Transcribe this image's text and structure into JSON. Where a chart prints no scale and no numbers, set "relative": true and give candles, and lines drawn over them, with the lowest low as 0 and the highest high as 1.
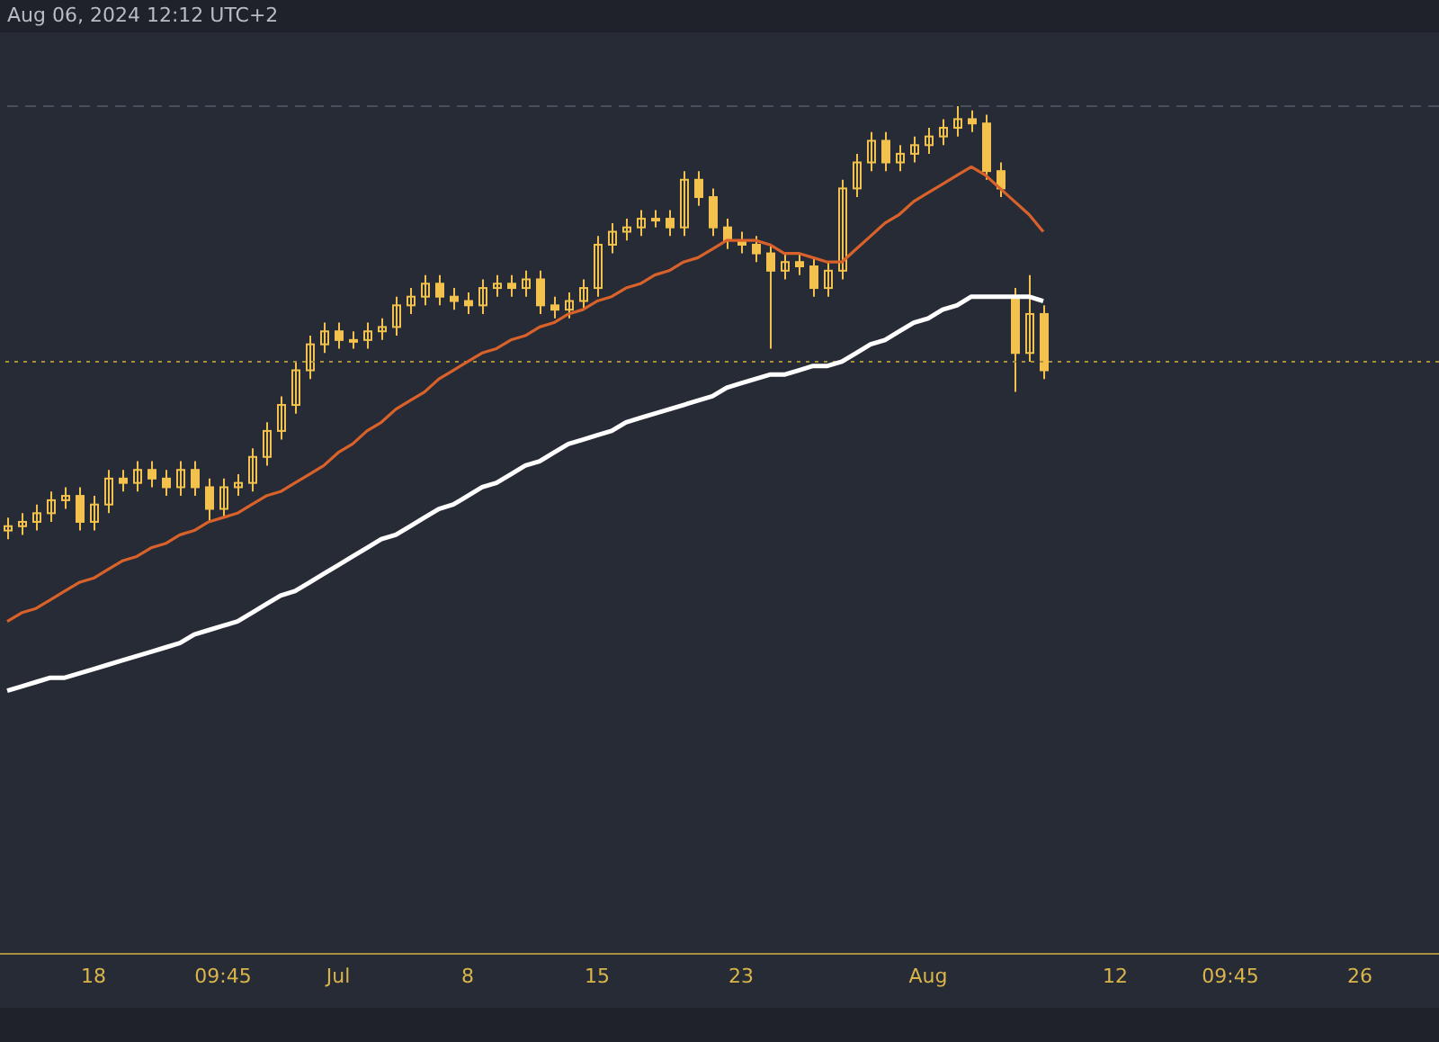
{
  "chart_data": {
    "type": "candlestick",
    "relative": true,
    "color": "#f2c14e",
    "marker": "none",
    "annotations": [
      "Aug 06, 2024 12:12 UTC+2"
    ],
    "categories": [
      null,
      null,
      null,
      null,
      null,
      null,
      "18",
      null,
      null,
      null,
      null,
      null,
      null,
      null,
      null,
      "09:45",
      null,
      null,
      null,
      null,
      null,
      null,
      null,
      "Jul",
      null,
      null,
      null,
      null,
      null,
      null,
      null,
      null,
      "8",
      null,
      null,
      null,
      null,
      null,
      null,
      null,
      null,
      "15",
      null,
      null,
      null,
      null,
      null,
      null,
      null,
      null,
      null,
      "23",
      null,
      null,
      null,
      null,
      null,
      null,
      null,
      null,
      null,
      null,
      null,
      null,
      "Aug",
      null,
      null,
      null,
      null,
      null,
      null,
      null,
      null,
      null,
      null,
      null,
      null,
      "12",
      null,
      null,
      null,
      null,
      null,
      null,
      null,
      "09:45",
      null,
      null,
      null,
      null,
      null,
      null,
      null,
      null,
      "26",
      null,
      null,
      null,
      null,
      null
    ],
    "ohlc": [
      [
        0.02,
        0.05,
        0.0,
        0.03
      ],
      [
        0.03,
        0.06,
        0.01,
        0.04
      ],
      [
        0.04,
        0.08,
        0.02,
        0.06
      ],
      [
        0.06,
        0.11,
        0.04,
        0.09
      ],
      [
        0.09,
        0.12,
        0.07,
        0.1
      ],
      [
        0.1,
        0.12,
        0.02,
        0.04
      ],
      [
        0.04,
        0.1,
        0.02,
        0.08
      ],
      [
        0.08,
        0.16,
        0.06,
        0.14
      ],
      [
        0.14,
        0.16,
        0.11,
        0.13
      ],
      [
        0.13,
        0.18,
        0.11,
        0.16
      ],
      [
        0.16,
        0.18,
        0.12,
        0.14
      ],
      [
        0.14,
        0.16,
        0.1,
        0.12
      ],
      [
        0.12,
        0.18,
        0.1,
        0.16
      ],
      [
        0.16,
        0.18,
        0.1,
        0.12
      ],
      [
        0.12,
        0.14,
        0.04,
        0.07
      ],
      [
        0.07,
        0.14,
        0.05,
        0.12
      ],
      [
        0.12,
        0.15,
        0.1,
        0.13
      ],
      [
        0.13,
        0.21,
        0.11,
        0.19
      ],
      [
        0.19,
        0.27,
        0.17,
        0.25
      ],
      [
        0.25,
        0.33,
        0.23,
        0.31
      ],
      [
        0.31,
        0.41,
        0.29,
        0.39
      ],
      [
        0.39,
        0.47,
        0.37,
        0.45
      ],
      [
        0.45,
        0.5,
        0.43,
        0.48
      ],
      [
        0.48,
        0.5,
        0.44,
        0.46
      ],
      [
        0.46,
        0.48,
        0.44,
        0.46
      ],
      [
        0.46,
        0.5,
        0.44,
        0.48
      ],
      [
        0.48,
        0.51,
        0.46,
        0.49
      ],
      [
        0.49,
        0.56,
        0.47,
        0.54
      ],
      [
        0.54,
        0.58,
        0.52,
        0.56
      ],
      [
        0.56,
        0.61,
        0.54,
        0.59
      ],
      [
        0.59,
        0.61,
        0.54,
        0.56
      ],
      [
        0.56,
        0.58,
        0.53,
        0.55
      ],
      [
        0.55,
        0.57,
        0.52,
        0.54
      ],
      [
        0.54,
        0.6,
        0.52,
        0.58
      ],
      [
        0.58,
        0.61,
        0.56,
        0.59
      ],
      [
        0.59,
        0.61,
        0.56,
        0.58
      ],
      [
        0.58,
        0.62,
        0.56,
        0.6
      ],
      [
        0.6,
        0.62,
        0.52,
        0.54
      ],
      [
        0.54,
        0.56,
        0.51,
        0.53
      ],
      [
        0.53,
        0.57,
        0.51,
        0.55
      ],
      [
        0.55,
        0.6,
        0.53,
        0.58
      ],
      [
        0.58,
        0.7,
        0.56,
        0.68
      ],
      [
        0.68,
        0.73,
        0.66,
        0.71
      ],
      [
        0.71,
        0.74,
        0.69,
        0.72
      ],
      [
        0.72,
        0.76,
        0.7,
        0.74
      ],
      [
        0.74,
        0.76,
        0.72,
        0.74
      ],
      [
        0.74,
        0.76,
        0.7,
        0.72
      ],
      [
        0.72,
        0.85,
        0.7,
        0.83
      ],
      [
        0.83,
        0.85,
        0.77,
        0.79
      ],
      [
        0.79,
        0.81,
        0.7,
        0.72
      ],
      [
        0.72,
        0.74,
        0.67,
        0.69
      ],
      [
        0.69,
        0.71,
        0.66,
        0.68
      ],
      [
        0.68,
        0.7,
        0.64,
        0.66
      ],
      [
        0.66,
        0.68,
        0.44,
        0.62
      ],
      [
        0.62,
        0.66,
        0.6,
        0.64
      ],
      [
        0.64,
        0.66,
        0.61,
        0.63
      ],
      [
        0.63,
        0.65,
        0.56,
        0.58
      ],
      [
        0.58,
        0.64,
        0.56,
        0.62
      ],
      [
        0.62,
        0.83,
        0.6,
        0.81
      ],
      [
        0.81,
        0.89,
        0.79,
        0.87
      ],
      [
        0.87,
        0.94,
        0.85,
        0.92
      ],
      [
        0.92,
        0.94,
        0.85,
        0.87
      ],
      [
        0.87,
        0.91,
        0.85,
        0.89
      ],
      [
        0.89,
        0.93,
        0.87,
        0.91
      ],
      [
        0.91,
        0.95,
        0.89,
        0.93
      ],
      [
        0.93,
        0.97,
        0.91,
        0.95
      ],
      [
        0.95,
        1.0,
        0.93,
        0.97
      ],
      [
        0.97,
        0.99,
        0.94,
        0.96
      ],
      [
        0.96,
        0.98,
        0.83,
        0.85
      ],
      [
        0.85,
        0.87,
        0.79,
        0.81
      ],
      [
        0.56,
        0.58,
        0.34,
        0.43
      ],
      [
        0.43,
        0.61,
        0.41,
        0.52
      ],
      [
        0.52,
        0.54,
        0.37,
        0.39
      ],
      null,
      null,
      null,
      null,
      null,
      null,
      null,
      null,
      null,
      null,
      null,
      null,
      null,
      null,
      null,
      null,
      null,
      null,
      null,
      null,
      null,
      null,
      null,
      null,
      null,
      null,
      null
    ],
    "series": [
      {
        "type": "line",
        "color": "#d9622b",
        "values": [
          -0.19,
          -0.17,
          -0.16,
          -0.14,
          -0.12,
          -0.1,
          -0.09,
          -0.07,
          -0.05,
          -0.04,
          -0.02,
          -0.01,
          0.01,
          0.02,
          0.04,
          0.05,
          0.06,
          0.08,
          0.1,
          0.11,
          0.13,
          0.15,
          0.17,
          0.2,
          0.22,
          0.25,
          0.27,
          0.3,
          0.32,
          0.34,
          0.37,
          0.39,
          0.41,
          0.43,
          0.44,
          0.46,
          0.47,
          0.49,
          0.5,
          0.52,
          0.53,
          0.55,
          0.56,
          0.58,
          0.59,
          0.61,
          0.62,
          0.64,
          0.65,
          0.67,
          0.69,
          0.69,
          0.69,
          0.68,
          0.66,
          0.66,
          0.65,
          0.64,
          0.64,
          0.67,
          0.7,
          0.73,
          0.75,
          0.78,
          0.8,
          0.82,
          0.84,
          0.86,
          0.84,
          0.81,
          0.78,
          0.75,
          0.71,
          null,
          null,
          null,
          null,
          null,
          null,
          null,
          null,
          null,
          null,
          null,
          null,
          null,
          null,
          null,
          null,
          null,
          null,
          null,
          null,
          null,
          null,
          null,
          null,
          null,
          null,
          null
        ]
      },
      {
        "type": "line",
        "color": "#ffffff",
        "values": [
          -0.35,
          -0.34,
          -0.33,
          -0.32,
          -0.32,
          -0.31,
          -0.3,
          -0.29,
          -0.28,
          -0.27,
          -0.26,
          -0.25,
          -0.24,
          -0.22,
          -0.21,
          -0.2,
          -0.19,
          -0.17,
          -0.15,
          -0.13,
          -0.12,
          -0.1,
          -0.08,
          -0.06,
          -0.04,
          -0.02,
          0.0,
          0.01,
          0.03,
          0.05,
          0.07,
          0.08,
          0.1,
          0.12,
          0.13,
          0.15,
          0.17,
          0.18,
          0.2,
          0.22,
          0.23,
          0.24,
          0.25,
          0.27,
          0.28,
          0.29,
          0.3,
          0.31,
          0.32,
          0.33,
          0.35,
          0.36,
          0.37,
          0.38,
          0.38,
          0.39,
          0.4,
          0.4,
          0.41,
          0.43,
          0.45,
          0.46,
          0.48,
          0.5,
          0.51,
          0.53,
          0.54,
          0.56,
          0.56,
          0.56,
          0.56,
          0.56,
          0.55,
          null,
          null,
          null,
          null,
          null,
          null,
          null,
          null,
          null,
          null,
          null,
          null,
          null,
          null,
          null,
          null,
          null,
          null,
          null,
          null,
          null,
          null,
          null,
          null,
          null,
          null,
          null
        ]
      }
    ],
    "ref_lines": [
      {
        "axis": "y",
        "value": 1.0,
        "color": "#4a4f5c",
        "line_style": "dashed"
      },
      {
        "axis": "y",
        "value": 0.41,
        "color": "#a8923e",
        "line_style": "dotted"
      }
    ]
  }
}
